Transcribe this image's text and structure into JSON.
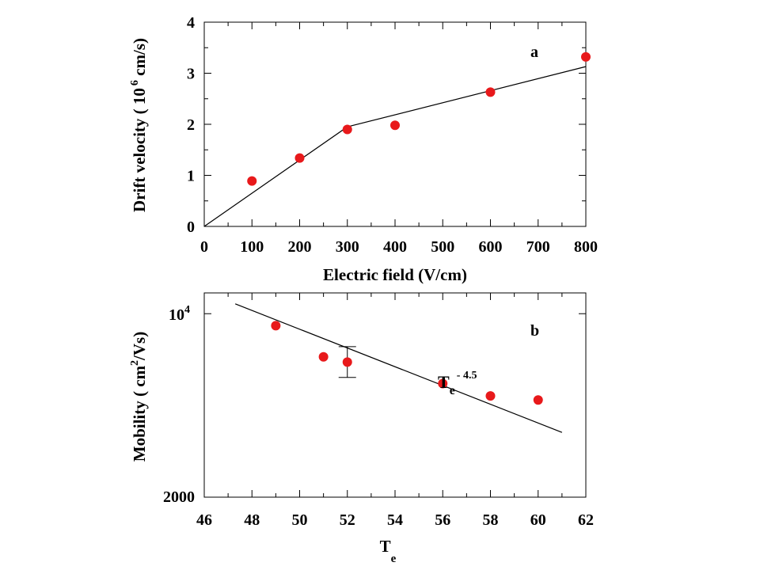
{
  "chart_data": [
    {
      "type": "scatter",
      "panel_label": "a",
      "xlabel": "Electric field (V/cm)",
      "ylabel_main": "Drift velocity ( 10",
      "ylabel_sup": "6",
      "ylabel_tail": " cm/s)",
      "xlim": [
        0,
        800
      ],
      "ylim": [
        0,
        4
      ],
      "x_ticks": [
        "0",
        "100",
        "200",
        "300",
        "400",
        "500",
        "600",
        "700",
        "800"
      ],
      "y_ticks": [
        "0",
        "1",
        "2",
        "3",
        "4"
      ],
      "series": [
        {
          "name": "measured",
          "x": [
            100,
            200,
            300,
            400,
            600,
            800
          ],
          "y": [
            0.89,
            1.34,
            1.9,
            1.98,
            2.63,
            3.32
          ]
        },
        {
          "name": "fit",
          "x": [
            0,
            300,
            800
          ],
          "y": [
            0.0,
            1.95,
            3.13
          ]
        }
      ]
    },
    {
      "type": "scatter",
      "panel_label": "b",
      "xlabel": "T",
      "xlabel_sub": "e",
      "ylabel_main": "Mobility ( cm",
      "ylabel_sup": "2",
      "ylabel_tail": "/Vs)",
      "yscale": "log",
      "xlim": [
        46,
        62
      ],
      "ylim": [
        2000,
        12000
      ],
      "x_ticks": [
        "46",
        "48",
        "50",
        "52",
        "54",
        "56",
        "58",
        "60",
        "62"
      ],
      "y_tick_labels": {
        "top_base": "10",
        "top_exp": "4",
        "bottom": "2000"
      },
      "y_tick_values": [
        10000,
        2000
      ],
      "annotation": {
        "base": "T",
        "sub": "e",
        "sup": "- 4.5"
      },
      "series": [
        {
          "name": "measured",
          "x": [
            49,
            51,
            52,
            56,
            58,
            60
          ],
          "y": [
            9000,
            6850,
            6540,
            5420,
            4860,
            4690
          ]
        },
        {
          "name": "fit",
          "x": [
            47.3,
            61.0
          ],
          "y": [
            10900,
            3530
          ]
        }
      ],
      "error_bar": {
        "x": 52,
        "y": 6540,
        "low": 5720,
        "high": 7490
      }
    }
  ]
}
